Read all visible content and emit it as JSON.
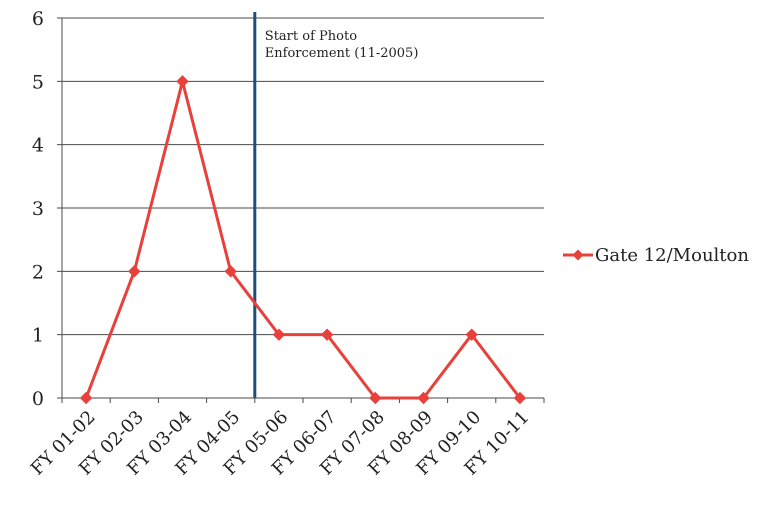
{
  "chart_data": {
    "type": "line",
    "categories": [
      "FY 01-02",
      "FY 02-03",
      "FY 03-04",
      "FY 04-05",
      "FY 05-06",
      "FY 06-07",
      "FY 07-08",
      "FY 08-09",
      "FY 09-10",
      "FY 10-11"
    ],
    "series": [
      {
        "name": "Gate 12/Moulton",
        "values": [
          0,
          2,
          5,
          2,
          1,
          1,
          0,
          0,
          1,
          0
        ],
        "color": "#e8413c",
        "marker": "diamond"
      }
    ],
    "title": "",
    "xlabel": "",
    "ylabel": "",
    "ylim": [
      0,
      6
    ],
    "yticks": [
      0,
      1,
      2,
      3,
      4,
      5,
      6
    ],
    "grid": true,
    "legend_position": "right",
    "vertical_marker": {
      "at_category": "FY 05-06",
      "color": "#1f4e79",
      "label_lines": [
        "Start of Photo",
        "Enforcement (11-2005)"
      ]
    }
  }
}
